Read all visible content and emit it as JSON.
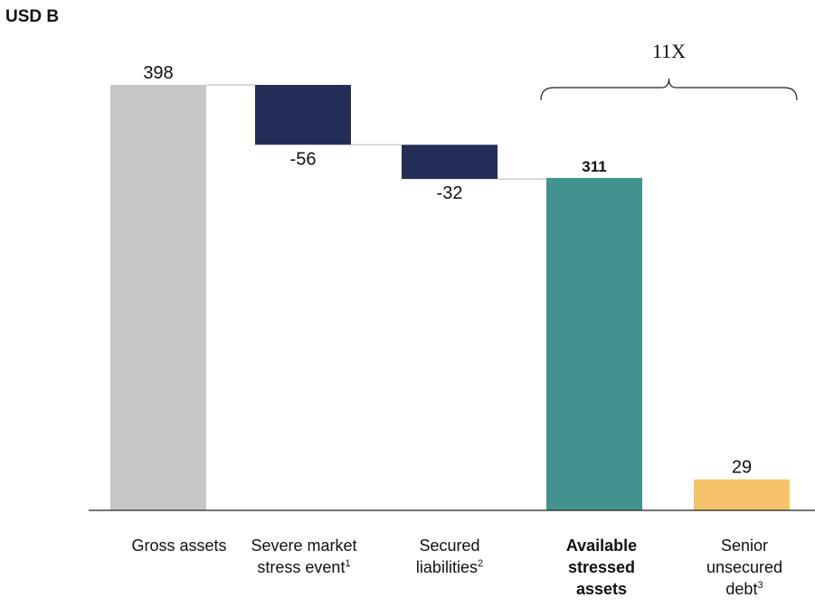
{
  "chart_data": {
    "type": "bar",
    "subtype": "waterfall",
    "unit_label": "USD B",
    "categories": [
      {
        "label": "Gross assets",
        "footnote": "",
        "bold": false
      },
      {
        "label": "Severe market stress event",
        "footnote": "1",
        "bold": false
      },
      {
        "label": "Secured liabilities",
        "footnote": "2",
        "bold": false
      },
      {
        "label": "Available stressed assets",
        "footnote": "",
        "bold": true
      },
      {
        "label": "Senior unsecured debt",
        "footnote": "3",
        "bold": false
      }
    ],
    "values": [
      398,
      -56,
      -32,
      311,
      29
    ],
    "bar_kinds": [
      "total",
      "decrease",
      "decrease",
      "total",
      "total"
    ],
    "data_labels": [
      "398",
      "-56",
      "-32",
      "311",
      "29"
    ],
    "bar_colors": [
      "#c6c6c6",
      "#242d56",
      "#242d56",
      "#429390",
      "#f6c36b"
    ],
    "annotation": {
      "text": "11X",
      "from_category": 3,
      "to_category": 4
    },
    "ylim": [
      0,
      398
    ]
  }
}
